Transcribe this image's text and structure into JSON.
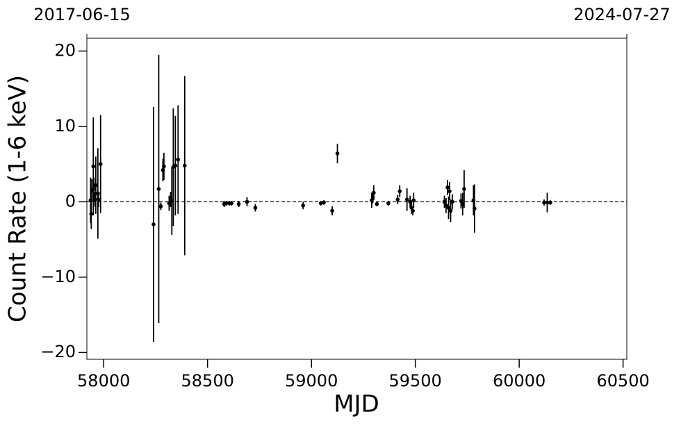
{
  "chart_data": {
    "type": "scatter",
    "xlabel": "MJD",
    "ylabel": "Count Rate (1-6 keV)",
    "color": "#000000",
    "x": [
      57937,
      57940,
      57943,
      57950,
      57953,
      57958,
      57962,
      57972,
      57975,
      57985,
      58240,
      58265,
      58275,
      58285,
      58290,
      58315,
      58322,
      58328,
      58335,
      58345,
      58358,
      58390,
      58580,
      58590,
      58605,
      58615,
      58650,
      58690,
      58730,
      58960,
      59045,
      59060,
      59100,
      59125,
      59290,
      59295,
      59300,
      59315,
      59370,
      59415,
      59425,
      59460,
      59475,
      59482,
      59488,
      59492,
      59640,
      59648,
      59655,
      59660,
      59665,
      59670,
      59678,
      59720,
      59728,
      59735,
      59780,
      59785,
      60120,
      60135,
      60150
    ],
    "values": [
      0.2,
      -1.6,
      1.5,
      4.7,
      1.7,
      0.3,
      2.2,
      1.1,
      0.3,
      5.0,
      -3.0,
      1.7,
      -0.6,
      4.2,
      4.7,
      -0.2,
      0.3,
      0.1,
      4.6,
      4.8,
      5.6,
      4.8,
      -0.3,
      -0.2,
      -0.2,
      -0.2,
      -0.3,
      0.0,
      -0.8,
      -0.5,
      -0.2,
      -0.1,
      -1.2,
      6.4,
      0.2,
      0.6,
      1.2,
      -0.3,
      -0.2,
      0.3,
      1.4,
      0.3,
      0.0,
      -0.8,
      -1.2,
      0.2,
      0.0,
      -0.5,
      1.9,
      -0.8,
      1.4,
      -1.2,
      0.0,
      0.1,
      -0.3,
      1.7,
      0.2,
      -0.9,
      -0.1,
      -0.1,
      -0.1
    ],
    "errors": [
      3.0,
      2.0,
      1.5,
      6.5,
      1.5,
      1.0,
      3.8,
      6.0,
      1.0,
      6.5,
      15.6,
      17.8,
      0.5,
      1.5,
      1.8,
      1.0,
      1.0,
      4.5,
      7.8,
      6.6,
      7.2,
      11.9,
      0.4,
      0.3,
      0.3,
      0.3,
      0.4,
      0.6,
      0.5,
      0.5,
      0.3,
      0.3,
      0.6,
      1.3,
      1.0,
      0.8,
      1.0,
      0.3,
      0.3,
      0.6,
      0.8,
      1.5,
      0.8,
      0.8,
      0.6,
      1.0,
      0.8,
      1.0,
      1.0,
      1.5,
      1.2,
      1.5,
      1.0,
      1.0,
      1.5,
      2.5,
      2.0,
      3.2,
      0.4,
      1.3,
      0.3
    ],
    "xlim": [
      57919,
      60518
    ],
    "ylim": [
      -20.9,
      21.7
    ],
    "xticks": [
      58000,
      58500,
      59000,
      59500,
      60000,
      60500
    ],
    "yticks": [
      {
        "value": -20,
        "label": "−20"
      },
      {
        "value": -10,
        "label": "−10"
      },
      0,
      10,
      20
    ],
    "x2ticks": [
      {
        "value": 57919,
        "label": "2017-06-15"
      },
      {
        "value": 60518,
        "label": "2024-07-27"
      }
    ],
    "reference_line": 0
  }
}
